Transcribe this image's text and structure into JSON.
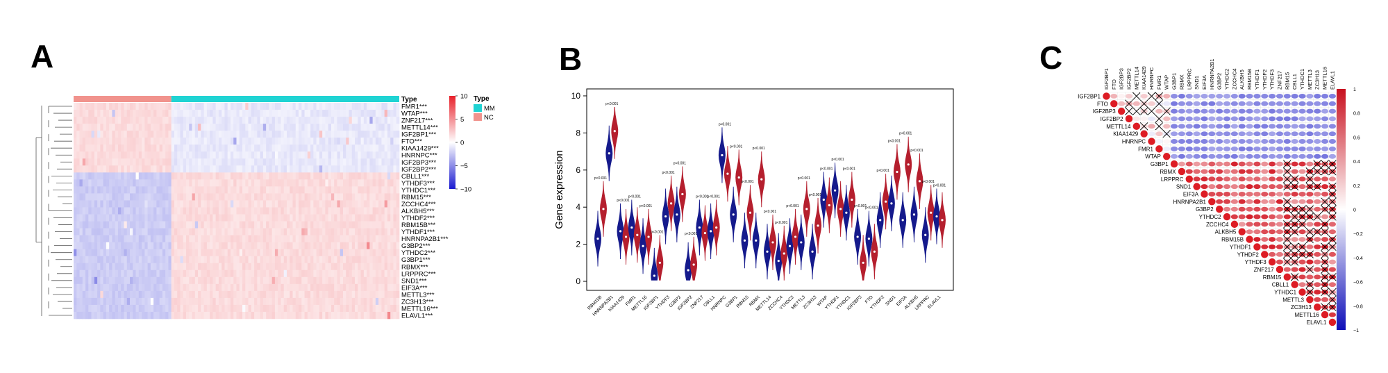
{
  "panels": {
    "a": "A",
    "b": "B",
    "c": "C"
  },
  "colors": {
    "mm": "#1fd3d3",
    "nc": "#f1938d",
    "high": "#e8202a",
    "low": "#1a1ad0",
    "mid": "#ffffff",
    "violin_blue": "#151a8c",
    "violin_red": "#b51f2e"
  },
  "chart_data": [
    {
      "type": "heatmap",
      "title": "",
      "genes": [
        "FMR1***",
        "WTAP***",
        "ZNF217***",
        "METTL14***",
        "IGF2BP1***",
        "FTO***",
        "KIAA1429***",
        "HNRNPC***",
        "IGF2BP3***",
        "IGF2BP2***",
        "CBLL1***",
        "YTHDF3***",
        "YTHDC1***",
        "RBM15***",
        "ZCCHC4***",
        "ALKBH5***",
        "YTHDF2***",
        "RBM15B***",
        "YTHDF1***",
        "HNRNPA2B1***",
        "G3BP2***",
        "YTHDC2***",
        "G3BP1***",
        "RBMX***",
        "LRPPRC***",
        "SND1***",
        "EIF3A***",
        "METTL3***",
        "ZC3H13***",
        "METTL16***",
        "ELAVL1***"
      ],
      "groups": [
        {
          "name": "MM",
          "color": "#1fd3d3"
        },
        {
          "name": "NC",
          "color": "#f1938d"
        }
      ],
      "annotation_label": "Type",
      "legend_title": "Type",
      "colorbar": {
        "ticks": [
          "10",
          "5",
          "0",
          "−5",
          "−10"
        ],
        "values": [
          10,
          5,
          0,
          -5,
          -10
        ]
      },
      "nc_fraction": 0.3,
      "nc_higher_genes": 10
    },
    {
      "type": "violin",
      "ylabel": "Gene expression",
      "xlabel": "",
      "ylim": [
        0,
        10
      ],
      "yticks": [
        "0",
        "2",
        "4",
        "6",
        "8",
        "10"
      ],
      "categories": [
        "RBM15B",
        "HNRNPA2B1",
        "KIAA1429",
        "FMR1",
        "METTL16",
        "IGF2BP1",
        "YTHDF3",
        "G3BP2",
        "IGF2BP2",
        "ZNF217",
        "CBLL1",
        "HNRNPC",
        "G3BP1",
        "RBM15",
        "RBMX",
        "METTL14",
        "ZCCHC4",
        "YTHDC2",
        "METTL3",
        "ZC3H13",
        "WTAP",
        "YTHDF1",
        "YTHDC1",
        "IGF2BP3",
        "FTO",
        "YTHDF2",
        "SND1",
        "EIF3A",
        "ALKBH5",
        "LRPPRC",
        "ELAVL1"
      ],
      "series": [
        {
          "values": [
            2.3,
            6.9,
            2.7,
            2.9,
            1.9,
            0.3,
            3.5,
            3.6,
            0.6,
            2.9,
            2.7,
            6.8,
            3.6,
            2.2,
            2.2,
            1.6,
            1.1,
            1.9,
            2.1,
            1.6,
            4.4,
            4.9,
            3.7,
            2.4,
            2.3,
            3.3,
            4.2,
            3.3,
            3.6,
            2.5,
            3.5
          ]
        },
        {
          "values": [
            3.9,
            8.1,
            2.4,
            2.5,
            2.4,
            1.0,
            4.2,
            4.7,
            0.9,
            2.6,
            2.9,
            5.8,
            5.6,
            3.7,
            5.5,
            2.1,
            1.5,
            2.4,
            3.9,
            3.0,
            4.1,
            3.9,
            4.4,
            1.0,
            1.6,
            4.3,
            5.9,
            6.3,
            5.4,
            3.7,
            3.3
          ]
        }
      ],
      "pvalues": [
        "p<0.001",
        "p<0.001",
        "p<0.001",
        "p<0.001",
        "p<0.001",
        "p<0.001",
        "p<0.001",
        "p<0.001",
        "p<0.001",
        "p<0.001",
        "p<0.001",
        "p<0.001",
        "p<0.001",
        "p<0.001",
        "p<0.001",
        "p<0.001",
        "p<0.001",
        "p<0.001",
        "p<0.001",
        "p<0.001",
        "p<0.001",
        "p<0.001",
        "p<0.001",
        "p<0.001",
        "p<0.001",
        "p<0.001",
        "p<0.001",
        "p<0.001",
        "p<0.001",
        "p<0.001",
        "p<0.001"
      ]
    },
    {
      "type": "heatmap",
      "title": "",
      "genes": [
        "IGF2BP1",
        "FTO",
        "IGF2BP3",
        "IGF2BP2",
        "METTL14",
        "KIAA1429",
        "HNRNPC",
        "FMR1",
        "WTAP",
        "G3BP1",
        "RBMX",
        "LRPPRC",
        "SND1",
        "EIF3A",
        "HNRNPA2B1",
        "G3BP2",
        "YTHDC2",
        "ZCCHC4",
        "ALKBH5",
        "RBM15B",
        "YTHDF1",
        "YTHDF2",
        "YTHDF3",
        "ZNF217",
        "RBM15",
        "CBLL1",
        "YTHDC1",
        "METTL3",
        "ZC3H13",
        "METTL16",
        "ELAVL1"
      ],
      "top_genes": [
        "IGF2BP1",
        "FTO",
        "IGF2BP3",
        "IGF2BP2",
        "METTL14",
        "KIAA1429",
        "HNRNPC",
        "FMR1",
        "WTAP",
        "G3BP1",
        "RBMX",
        "LRPPRC",
        "SND1",
        "EIF3A",
        "HNRNPA2B1",
        "G3BP2",
        "YTHDC2",
        "ZCCHC4",
        "ALKBH5",
        "RBM15B",
        "YTHDF1",
        "YTHDF2",
        "YTHDF3",
        "ZNF217",
        "RBM15",
        "CBLL1",
        "YTHDC1",
        "METTL3",
        "ZC3H13",
        "METTL16",
        "ELAVL1"
      ],
      "colorbar": {
        "ticks": [
          "1",
          "0.8",
          "0.6",
          "0.4",
          "0.2",
          "0",
          "−0.2",
          "−0.4",
          "−0.6",
          "−0.8",
          "−1"
        ],
        "values": [
          1,
          0.8,
          0.6,
          0.4,
          0.2,
          0,
          -0.2,
          -0.4,
          -0.6,
          -0.8,
          -1
        ]
      }
    }
  ]
}
